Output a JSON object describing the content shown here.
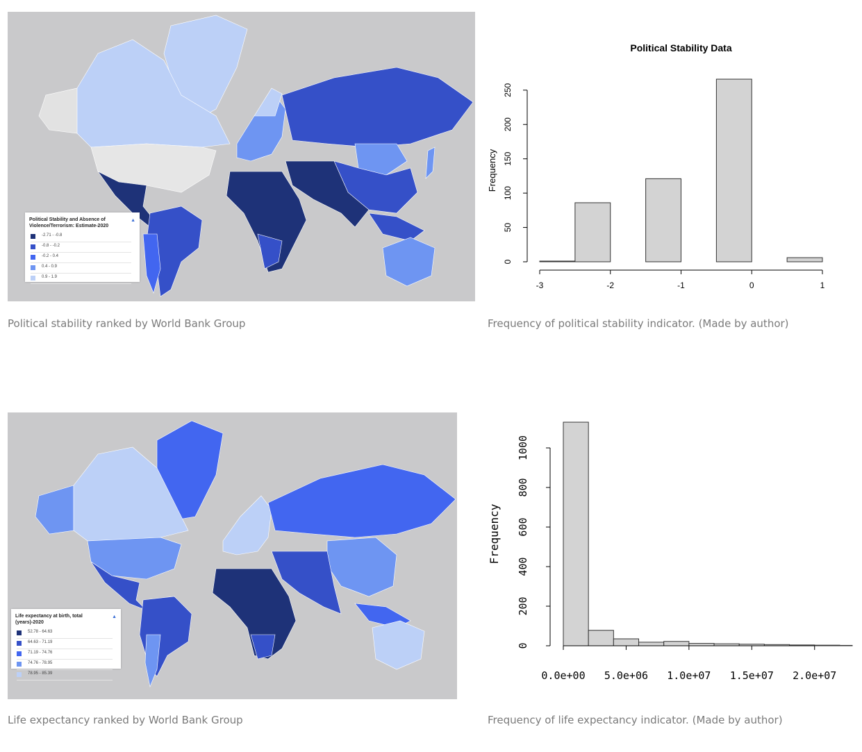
{
  "captions": {
    "map1": "Political stability ranked by World Bank Group",
    "chart1": "Frequency of political stability indicator. (Made by author)",
    "map2": "Life expectancy ranked by World Bank Group",
    "chart2": "Frequency of life expectancy indicator. (Made by author)"
  },
  "map1": {
    "legend_title": "Political Stability and Absence of Violence/Terrorism: Estimate-2020",
    "legend_items": [
      {
        "label": "-2.71 - -0.8",
        "color": "#1e3278"
      },
      {
        "label": "-0.8 - -0.2",
        "color": "#3550c8"
      },
      {
        "label": "-0.2 - 0.4",
        "color": "#4266f0"
      },
      {
        "label": "0.4 - 0.9",
        "color": "#6e95f2"
      },
      {
        "label": "0.9 - 1.9",
        "color": "#bcd0f7"
      }
    ]
  },
  "map2": {
    "legend_title": "Life expectancy at birth, total (years)-2020",
    "legend_items": [
      {
        "label": "52.78 - 64.63",
        "color": "#1e3278"
      },
      {
        "label": "64.63 - 71.19",
        "color": "#3550c8"
      },
      {
        "label": "71.19 - 74.76",
        "color": "#4266f0"
      },
      {
        "label": "74.76 - 78.95",
        "color": "#6e95f2"
      },
      {
        "label": "78.95 - 85.39",
        "color": "#bcd0f7"
      }
    ]
  },
  "colors": {
    "map_background": "#c9c9cb",
    "bar_fill": "#d3d3d3",
    "bar_stroke": "#333333"
  },
  "chart_data": [
    {
      "type": "bar",
      "title": "Political Stability Data",
      "xlabel": "",
      "ylabel": "Frequency",
      "bins": [
        [
          -3,
          -2.5
        ],
        [
          -2.5,
          -2
        ],
        [
          -2,
          -1.5
        ],
        [
          -1.5,
          -1
        ],
        [
          -1,
          -0.5
        ],
        [
          -0.5,
          0
        ],
        [
          0,
          0.5
        ],
        [
          0.5,
          1
        ]
      ],
      "values": [
        1,
        86,
        0,
        121,
        0,
        266,
        0,
        6
      ],
      "xlim": [
        -3,
        1
      ],
      "ylim": [
        0,
        266
      ],
      "xticks": [
        -3,
        -2,
        -1,
        0,
        1
      ],
      "xtick_labels": [
        "-3",
        "-2",
        "-1",
        "0",
        "1"
      ],
      "yticks": [
        0,
        50,
        100,
        150,
        200,
        250
      ],
      "ytick_labels": [
        "0",
        "50",
        "100",
        "150",
        "200",
        "250"
      ]
    },
    {
      "type": "bar",
      "title": "",
      "xlabel": "",
      "ylabel": "Frequency",
      "bins": [
        [
          0,
          2000000
        ],
        [
          2000000,
          4000000
        ],
        [
          4000000,
          6000000
        ],
        [
          6000000,
          8000000
        ],
        [
          8000000,
          10000000
        ],
        [
          10000000,
          12000000
        ],
        [
          12000000,
          14000000
        ],
        [
          14000000,
          16000000
        ],
        [
          16000000,
          18000000
        ],
        [
          18000000,
          20000000
        ],
        [
          20000000,
          22000000
        ],
        [
          22000000,
          24000000
        ]
      ],
      "values": [
        1130,
        78,
        35,
        18,
        22,
        12,
        10,
        8,
        6,
        4,
        3,
        2
      ],
      "xlim": [
        0,
        23000000
      ],
      "ylim": [
        0,
        1130
      ],
      "xticks": [
        0,
        5000000,
        10000000,
        15000000,
        20000000
      ],
      "xtick_labels": [
        "0.0e+00",
        "5.0e+06",
        "1.0e+07",
        "1.5e+07",
        "2.0e+07"
      ],
      "yticks": [
        0,
        200,
        400,
        600,
        800,
        1000
      ],
      "ytick_labels": [
        "0",
        "200",
        "400",
        "600",
        "800",
        "1000"
      ]
    }
  ]
}
